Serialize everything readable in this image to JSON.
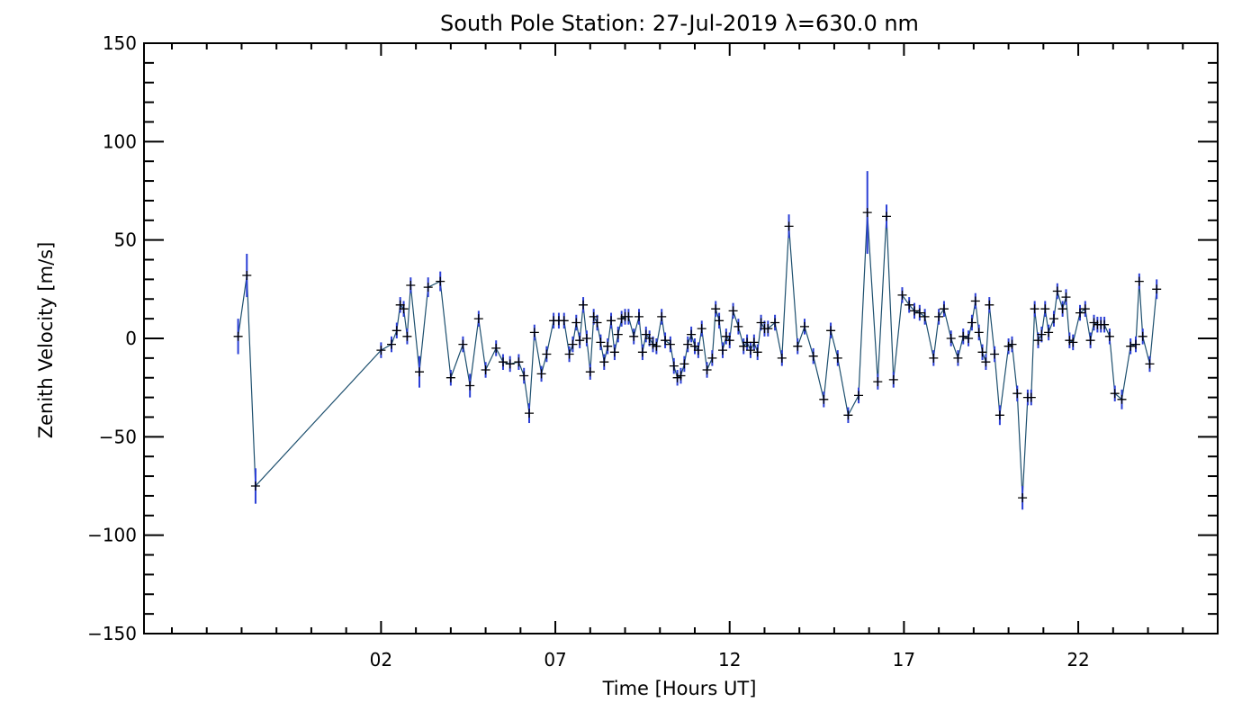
{
  "chart_data": {
    "type": "scatter",
    "title": "South Pole Station: 27-Jul-2019 λ=630.0 nm",
    "xlabel": "Time [Hours UT]",
    "ylabel": "Zenith Velocity [m/s]",
    "xlim": [
      -4.8,
      26.0
    ],
    "ylim": [
      -150,
      150
    ],
    "xticks": [
      2,
      7,
      12,
      17,
      22
    ],
    "xtick_labels": [
      "02",
      "07",
      "12",
      "17",
      "22"
    ],
    "yticks": [
      -150,
      -100,
      -50,
      0,
      50,
      100,
      150
    ],
    "ytick_labels": [
      "−150",
      "−100",
      "−50",
      "0",
      "50",
      "100",
      "150"
    ],
    "grid": false,
    "colors": {
      "line": "#1d4f6e",
      "errorbar": "#2b3fd6",
      "marker": "#000000",
      "axis": "#000000"
    },
    "series": [
      {
        "name": "zenith velocity",
        "points": [
          [
            -2.1,
            1,
            9
          ],
          [
            -1.85,
            32,
            11
          ],
          [
            -1.6,
            -75,
            9
          ],
          [
            2.0,
            -6,
            4
          ],
          [
            2.3,
            -3,
            4
          ],
          [
            2.45,
            4,
            4
          ],
          [
            2.55,
            17,
            4
          ],
          [
            2.65,
            15,
            4
          ],
          [
            2.75,
            1,
            4
          ],
          [
            2.85,
            27,
            4
          ],
          [
            3.1,
            -17,
            8
          ],
          [
            3.35,
            26,
            5
          ],
          [
            3.7,
            29,
            5
          ],
          [
            4.0,
            -20,
            4
          ],
          [
            4.35,
            -3,
            4
          ],
          [
            4.55,
            -24,
            6
          ],
          [
            4.8,
            10,
            4
          ],
          [
            5.0,
            -16,
            4
          ],
          [
            5.3,
            -5,
            4
          ],
          [
            5.5,
            -12,
            4
          ],
          [
            5.7,
            -13,
            4
          ],
          [
            5.95,
            -12,
            4
          ],
          [
            6.1,
            -19,
            4
          ],
          [
            6.25,
            -38,
            5
          ],
          [
            6.4,
            3,
            4
          ],
          [
            6.6,
            -18,
            4
          ],
          [
            6.75,
            -8,
            4
          ],
          [
            6.95,
            9,
            4
          ],
          [
            7.1,
            9,
            4
          ],
          [
            7.25,
            9,
            4
          ],
          [
            7.4,
            -8,
            4
          ],
          [
            7.5,
            -3,
            4
          ],
          [
            7.6,
            8,
            4
          ],
          [
            7.7,
            -1,
            4
          ],
          [
            7.8,
            17,
            4
          ],
          [
            7.9,
            0,
            4
          ],
          [
            8.0,
            -17,
            4
          ],
          [
            8.1,
            11,
            4
          ],
          [
            8.2,
            8,
            4
          ],
          [
            8.3,
            -2,
            4
          ],
          [
            8.4,
            -12,
            4
          ],
          [
            8.5,
            -4,
            4
          ],
          [
            8.6,
            9,
            4
          ],
          [
            8.7,
            -7,
            4
          ],
          [
            8.8,
            2,
            4
          ],
          [
            8.9,
            10,
            4
          ],
          [
            9.0,
            11,
            4
          ],
          [
            9.1,
            11,
            4
          ],
          [
            9.25,
            1,
            4
          ],
          [
            9.4,
            11,
            4
          ],
          [
            9.5,
            -7,
            4
          ],
          [
            9.6,
            2,
            4
          ],
          [
            9.7,
            0,
            4
          ],
          [
            9.8,
            -3,
            4
          ],
          [
            9.9,
            -4,
            4
          ],
          [
            10.05,
            11,
            4
          ],
          [
            10.15,
            -1,
            4
          ],
          [
            10.3,
            -3,
            4
          ],
          [
            10.4,
            -14,
            4
          ],
          [
            10.5,
            -20,
            4
          ],
          [
            10.6,
            -19,
            4
          ],
          [
            10.7,
            -13,
            4
          ],
          [
            10.8,
            -3,
            4
          ],
          [
            10.9,
            2,
            4
          ],
          [
            11.0,
            -4,
            4
          ],
          [
            11.1,
            -6,
            4
          ],
          [
            11.2,
            5,
            4
          ],
          [
            11.35,
            -16,
            4
          ],
          [
            11.5,
            -10,
            4
          ],
          [
            11.6,
            15,
            4
          ],
          [
            11.7,
            9,
            4
          ],
          [
            11.8,
            -6,
            4
          ],
          [
            11.9,
            1,
            4
          ],
          [
            12.0,
            -1,
            4
          ],
          [
            12.1,
            14,
            4
          ],
          [
            12.25,
            6,
            4
          ],
          [
            12.4,
            -4,
            4
          ],
          [
            12.5,
            -2,
            4
          ],
          [
            12.6,
            -6,
            4
          ],
          [
            12.7,
            -2,
            4
          ],
          [
            12.8,
            -7,
            4
          ],
          [
            12.9,
            8,
            4
          ],
          [
            13.0,
            5,
            4
          ],
          [
            13.1,
            5,
            4
          ],
          [
            13.3,
            8,
            4
          ],
          [
            13.5,
            -10,
            4
          ],
          [
            13.7,
            57,
            6
          ],
          [
            13.95,
            -4,
            4
          ],
          [
            14.15,
            6,
            4
          ],
          [
            14.4,
            -9,
            4
          ],
          [
            14.7,
            -31,
            4
          ],
          [
            14.9,
            4,
            4
          ],
          [
            15.1,
            -10,
            4
          ],
          [
            15.4,
            -39,
            4
          ],
          [
            15.7,
            -29,
            4
          ],
          [
            15.95,
            64,
            21
          ],
          [
            16.25,
            -22,
            4
          ],
          [
            16.5,
            62,
            6
          ],
          [
            16.7,
            -21,
            4
          ],
          [
            16.95,
            22,
            4
          ],
          [
            17.15,
            17,
            4
          ],
          [
            17.3,
            14,
            4
          ],
          [
            17.45,
            13,
            4
          ],
          [
            17.6,
            11,
            4
          ],
          [
            17.85,
            -10,
            4
          ],
          [
            18.0,
            11,
            4
          ],
          [
            18.15,
            15,
            4
          ],
          [
            18.35,
            0,
            4
          ],
          [
            18.55,
            -10,
            4
          ],
          [
            18.7,
            1,
            4
          ],
          [
            18.85,
            0,
            4
          ],
          [
            18.95,
            8,
            4
          ],
          [
            19.05,
            19,
            4
          ],
          [
            19.15,
            3,
            4
          ],
          [
            19.25,
            -7,
            4
          ],
          [
            19.35,
            -12,
            4
          ],
          [
            19.45,
            17,
            4
          ],
          [
            19.6,
            -8,
            4
          ],
          [
            19.75,
            -39,
            5
          ],
          [
            20.0,
            -4,
            4
          ],
          [
            20.1,
            -3,
            4
          ],
          [
            20.25,
            -28,
            4
          ],
          [
            20.4,
            -81,
            6
          ],
          [
            20.55,
            -30,
            4
          ],
          [
            20.65,
            -30,
            4
          ],
          [
            20.75,
            15,
            4
          ],
          [
            20.85,
            -1,
            4
          ],
          [
            20.95,
            2,
            4
          ],
          [
            21.05,
            15,
            4
          ],
          [
            21.15,
            3,
            4
          ],
          [
            21.3,
            10,
            4
          ],
          [
            21.4,
            24,
            4
          ],
          [
            21.55,
            15,
            4
          ],
          [
            21.65,
            21,
            4
          ],
          [
            21.75,
            -1,
            4
          ],
          [
            21.85,
            -2,
            4
          ],
          [
            22.05,
            13,
            4
          ],
          [
            22.2,
            15,
            4
          ],
          [
            22.35,
            -1,
            4
          ],
          [
            22.45,
            8,
            4
          ],
          [
            22.55,
            7,
            4
          ],
          [
            22.65,
            7,
            4
          ],
          [
            22.75,
            7,
            4
          ],
          [
            22.9,
            1,
            4
          ],
          [
            23.05,
            -28,
            4
          ],
          [
            23.25,
            -31,
            5
          ],
          [
            23.5,
            -4,
            4
          ],
          [
            23.65,
            -3,
            4
          ],
          [
            23.75,
            29,
            4
          ],
          [
            23.85,
            1,
            4
          ],
          [
            24.05,
            -13,
            4
          ],
          [
            24.25,
            25,
            5
          ]
        ]
      }
    ]
  }
}
